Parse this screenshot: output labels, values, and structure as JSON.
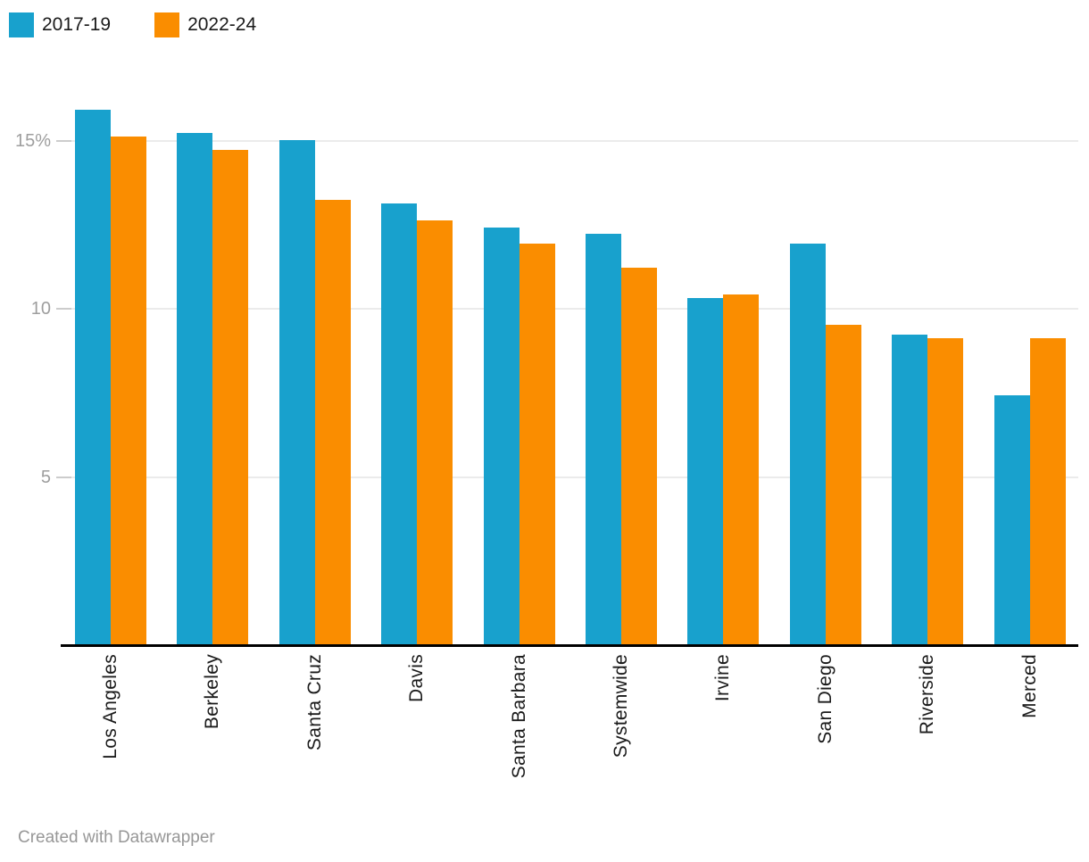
{
  "footer": {
    "credit": "Created with Datawrapper"
  },
  "chart_data": {
    "type": "bar",
    "title": "",
    "xlabel": "",
    "ylabel": "",
    "categories": [
      "Los Angeles",
      "Berkeley",
      "Santa Cruz",
      "Davis",
      "Santa Barbara",
      "Systemwide",
      "Irvine",
      "San Diego",
      "Riverside",
      "Merced"
    ],
    "series": [
      {
        "name": "2017-19",
        "color": "#18a1cd",
        "values": [
          15.9,
          15.2,
          15.0,
          13.1,
          12.4,
          12.2,
          10.3,
          11.9,
          9.2,
          7.4
        ]
      },
      {
        "name": "2022-24",
        "color": "#fa8d00",
        "values": [
          15.1,
          14.7,
          13.2,
          12.6,
          11.9,
          11.2,
          10.4,
          9.5,
          9.1,
          9.1
        ]
      }
    ],
    "ylim": [
      0,
      16.5
    ],
    "yticks": [
      5,
      10,
      15
    ],
    "ytick_labels": [
      "5",
      "10",
      "15%"
    ],
    "grid": true,
    "legend_position": "top-left",
    "unit": "%",
    "colors": {
      "gridline": "#ebebeb",
      "tick": "#cccccc",
      "axis": "#000000",
      "ytick_label": "#9e9e9e",
      "xtick_label": "#1a1a1a",
      "credit_text": "#979797"
    }
  }
}
